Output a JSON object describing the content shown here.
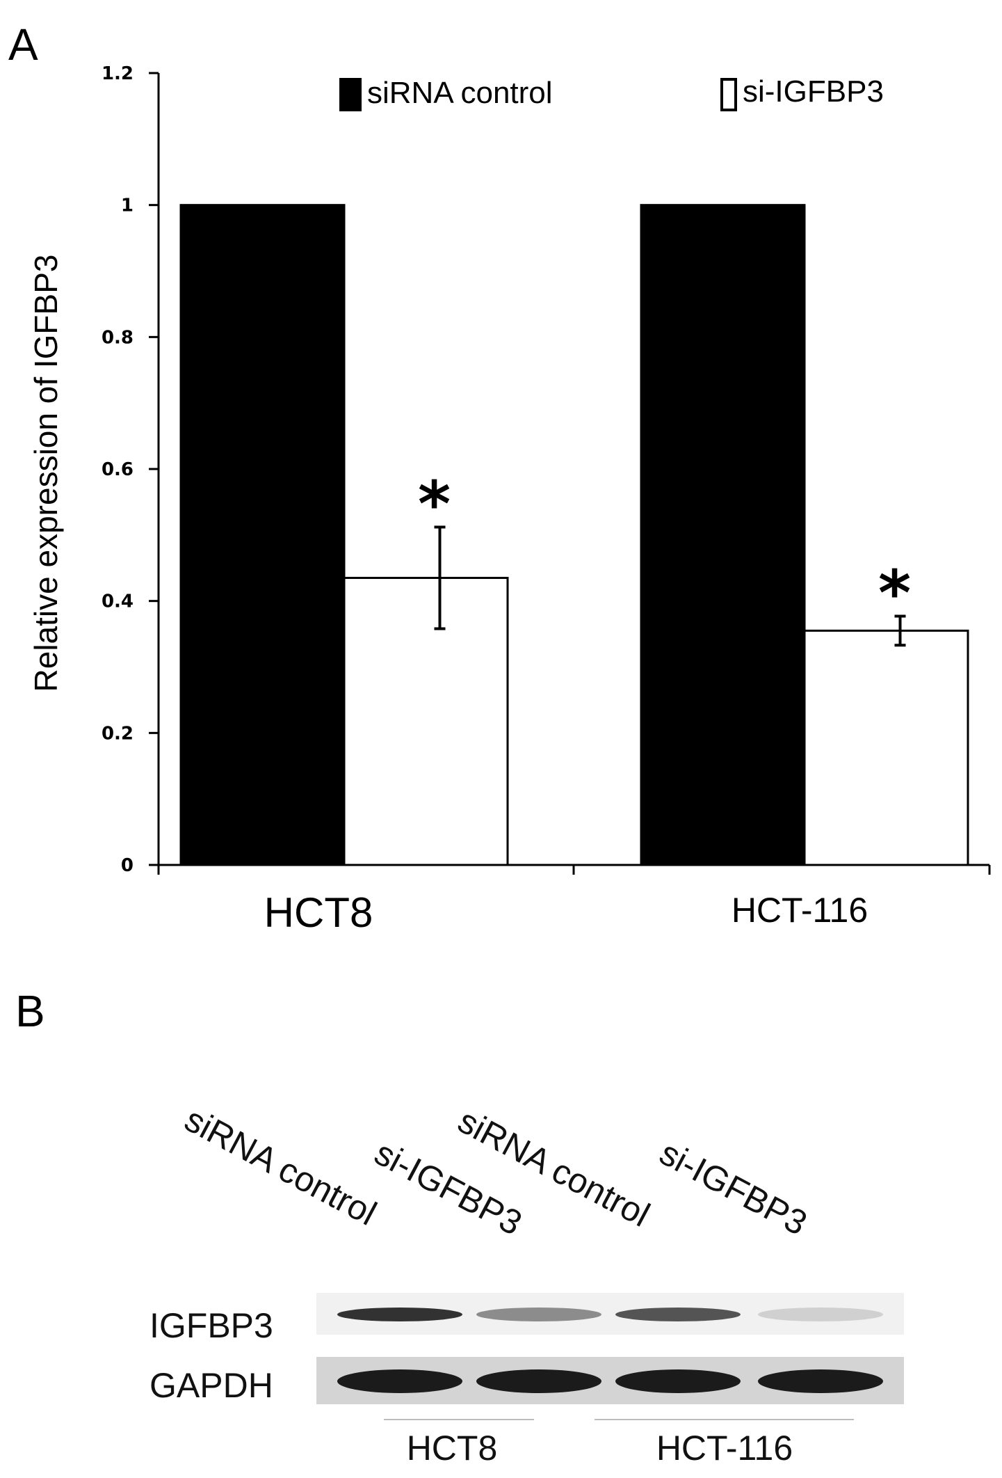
{
  "panels": {
    "a_label": "A",
    "b_label": "B"
  },
  "chart_data": {
    "type": "bar",
    "categories": [
      "HCT8",
      "HCT-116"
    ],
    "series": [
      {
        "name": "siRNA control",
        "values": [
          1.0,
          1.0
        ],
        "color": "#000000"
      },
      {
        "name": "si-IGFBP3",
        "values": [
          0.435,
          0.355
        ],
        "errors": [
          0.077,
          0.022
        ],
        "color": "#ffffff"
      }
    ],
    "significance": [
      "*",
      "*"
    ],
    "ylabel": "Relative expression of  IGFBP3",
    "ylim": [
      0,
      1.2
    ],
    "yticks": [
      "0",
      "0.2",
      "0.4",
      "0.6",
      "0.8",
      "1",
      "1.2"
    ],
    "legend_position": "top",
    "grid": false
  },
  "blot": {
    "lane_labels": [
      "siRNA control",
      "si-IGFBP3",
      "siRNA control",
      "si-IGFBP3"
    ],
    "rows": [
      {
        "label": "IGFBP3",
        "intensities": [
          0.85,
          0.45,
          0.7,
          0.15
        ]
      },
      {
        "label": "GAPDH",
        "intensities": [
          0.95,
          0.95,
          0.95,
          0.95
        ]
      }
    ],
    "groups": [
      "HCT8",
      "HCT-116"
    ]
  }
}
